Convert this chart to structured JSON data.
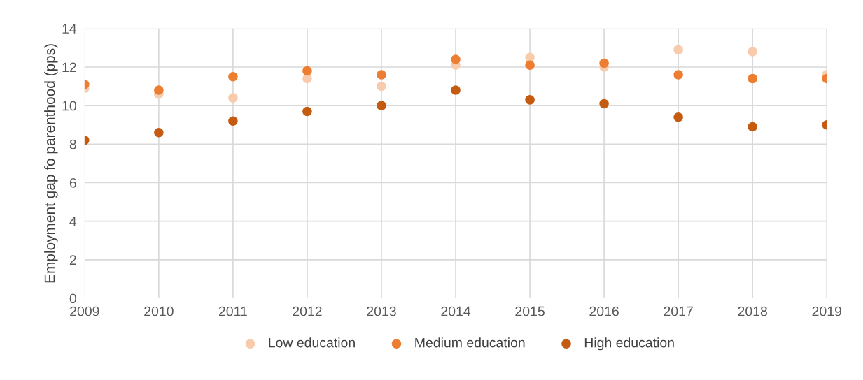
{
  "chart_data": {
    "type": "scatter",
    "ylabel": "Employment gap fo parenthood (pps)",
    "x": [
      2009,
      2010,
      2011,
      2012,
      2013,
      2014,
      2015,
      2016,
      2017,
      2018,
      2019
    ],
    "series": [
      {
        "name": "Low education",
        "color": "#f8cbad",
        "values": [
          10.9,
          10.6,
          10.4,
          11.4,
          11.0,
          12.1,
          12.5,
          12.0,
          12.9,
          12.8,
          11.6
        ]
      },
      {
        "name": "Medium education",
        "color": "#ed7d31",
        "values": [
          11.1,
          10.8,
          11.5,
          11.8,
          11.6,
          12.4,
          12.1,
          12.2,
          11.6,
          11.4,
          11.4
        ]
      },
      {
        "name": "High education",
        "color": "#c55a11",
        "values": [
          8.2,
          8.6,
          9.2,
          9.7,
          10.0,
          10.8,
          10.3,
          10.1,
          9.4,
          8.9,
          9.0
        ]
      }
    ],
    "xlim": [
      2009,
      2019
    ],
    "xticks": [
      2009,
      2010,
      2011,
      2012,
      2013,
      2014,
      2015,
      2016,
      2017,
      2018,
      2019
    ],
    "ylim": [
      0,
      14
    ],
    "yticks": [
      0,
      2,
      4,
      6,
      8,
      10,
      12,
      14
    ],
    "grid": true,
    "legend": "bottom",
    "marker": "circle"
  }
}
